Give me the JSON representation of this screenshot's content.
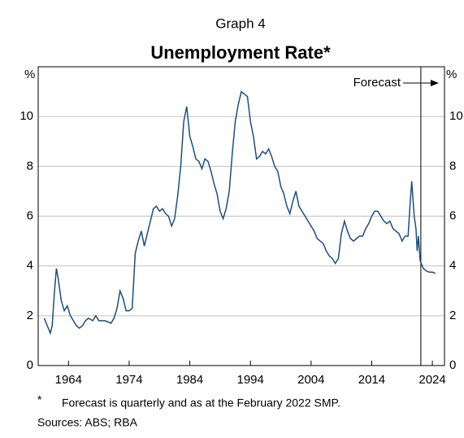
{
  "chart_data": {
    "type": "line",
    "graph_label": "Graph 4",
    "title": "Unemployment Rate*",
    "ylabel": "%",
    "annotation": "Forecast",
    "forecast_start": 2022.1,
    "footnote_marker": "*",
    "footnote": "Forecast is quarterly and as at the February 2022 SMP.",
    "source": "Sources: ABS; RBA",
    "xlim": [
      1959,
      2026
    ],
    "xticks": [
      1964,
      1974,
      1984,
      1994,
      2004,
      2014,
      2024
    ],
    "ylim": [
      0,
      12
    ],
    "yticks": [
      0,
      2,
      4,
      6,
      8,
      10
    ],
    "grid": true,
    "series": [
      {
        "name": "Unemployment rate",
        "color": "#1f4e79",
        "x": [
          1960.0,
          1960.5,
          1961.0,
          1961.3,
          1961.7,
          1962.0,
          1962.3,
          1962.8,
          1963.3,
          1963.8,
          1964.3,
          1964.8,
          1965.3,
          1965.8,
          1966.3,
          1966.8,
          1967.3,
          1968.0,
          1968.5,
          1969.0,
          1970.0,
          1971.0,
          1971.5,
          1972.0,
          1972.5,
          1973.0,
          1973.5,
          1974.0,
          1974.5,
          1975.0,
          1975.5,
          1976.0,
          1976.5,
          1977.0,
          1977.5,
          1978.0,
          1978.5,
          1979.0,
          1979.5,
          1980.0,
          1980.5,
          1981.0,
          1981.5,
          1982.0,
          1982.5,
          1983.0,
          1983.5,
          1984.0,
          1984.5,
          1985.0,
          1985.5,
          1986.0,
          1986.5,
          1987.0,
          1987.5,
          1988.0,
          1988.5,
          1989.0,
          1989.5,
          1990.0,
          1990.5,
          1991.0,
          1991.5,
          1992.0,
          1992.5,
          1993.0,
          1993.5,
          1994.0,
          1994.5,
          1995.0,
          1995.5,
          1996.0,
          1996.5,
          1997.0,
          1997.5,
          1998.0,
          1998.5,
          1999.0,
          1999.5,
          2000.0,
          2000.5,
          2001.0,
          2001.5,
          2002.0,
          2002.5,
          2003.0,
          2003.5,
          2004.0,
          2004.5,
          2005.0,
          2005.5,
          2006.0,
          2006.5,
          2007.0,
          2007.5,
          2008.0,
          2008.5,
          2009.0,
          2009.5,
          2010.0,
          2010.5,
          2011.0,
          2011.5,
          2012.0,
          2012.5,
          2013.0,
          2013.5,
          2014.0,
          2014.5,
          2015.0,
          2015.5,
          2016.0,
          2016.5,
          2017.0,
          2017.5,
          2018.0,
          2018.5,
          2019.0,
          2019.5,
          2020.0,
          2020.3,
          2020.6,
          2021.0,
          2021.3,
          2021.5,
          2021.7,
          2022.0,
          2022.5,
          2023.0,
          2023.5,
          2024.0,
          2024.5
        ],
        "values": [
          1.9,
          1.6,
          1.3,
          1.6,
          3.0,
          3.9,
          3.5,
          2.6,
          2.2,
          2.4,
          2.0,
          1.8,
          1.6,
          1.5,
          1.6,
          1.8,
          1.9,
          1.8,
          2.0,
          1.8,
          1.8,
          1.7,
          1.9,
          2.3,
          3.0,
          2.7,
          2.2,
          2.2,
          2.3,
          4.5,
          5.0,
          5.4,
          4.8,
          5.3,
          5.8,
          6.3,
          6.4,
          6.2,
          6.3,
          6.1,
          6.0,
          5.6,
          5.9,
          6.8,
          8.0,
          9.8,
          10.4,
          9.2,
          8.8,
          8.3,
          8.2,
          7.9,
          8.3,
          8.2,
          7.8,
          7.3,
          6.9,
          6.2,
          5.9,
          6.3,
          7.0,
          8.5,
          9.8,
          10.5,
          11.0,
          10.9,
          10.8,
          9.8,
          9.2,
          8.3,
          8.4,
          8.6,
          8.5,
          8.7,
          8.4,
          8.0,
          7.8,
          7.2,
          6.9,
          6.4,
          6.1,
          6.6,
          7.0,
          6.4,
          6.2,
          6.0,
          5.8,
          5.6,
          5.4,
          5.1,
          5.0,
          4.9,
          4.6,
          4.4,
          4.3,
          4.1,
          4.3,
          5.3,
          5.8,
          5.4,
          5.1,
          5.0,
          5.1,
          5.2,
          5.2,
          5.5,
          5.7,
          6.0,
          6.2,
          6.2,
          6.0,
          5.8,
          5.7,
          5.8,
          5.5,
          5.4,
          5.3,
          5.0,
          5.2,
          5.2,
          6.4,
          7.4,
          6.0,
          5.5,
          4.6,
          5.2,
          4.2,
          3.9,
          3.8,
          3.75,
          3.75,
          3.7
        ]
      }
    ]
  }
}
